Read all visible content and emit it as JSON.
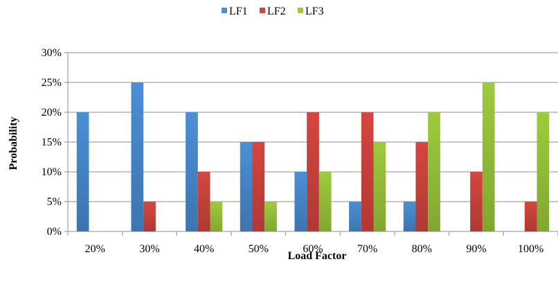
{
  "chart_data": {
    "type": "bar",
    "title": "",
    "xlabel": "Load Factor",
    "ylabel": "Probability",
    "categories": [
      "20%",
      "30%",
      "40%",
      "50%",
      "60%",
      "70%",
      "80%",
      "90%",
      "100%"
    ],
    "ylim": [
      0,
      30
    ],
    "yticks": [
      "0%",
      "5%",
      "10%",
      "15%",
      "20%",
      "25%",
      "30%"
    ],
    "grid": true,
    "legend_position": "top",
    "series": [
      {
        "name": "LF1",
        "color": "#4A8FD6",
        "values": [
          20,
          25,
          20,
          15,
          10,
          5,
          5,
          0,
          0
        ]
      },
      {
        "name": "LF2",
        "color": "#D5463F",
        "values": [
          0,
          5,
          10,
          15,
          20,
          20,
          15,
          10,
          5
        ]
      },
      {
        "name": "LF3",
        "color": "#9ECB3C",
        "values": [
          0,
          0,
          5,
          5,
          10,
          15,
          20,
          25,
          20
        ]
      }
    ]
  }
}
